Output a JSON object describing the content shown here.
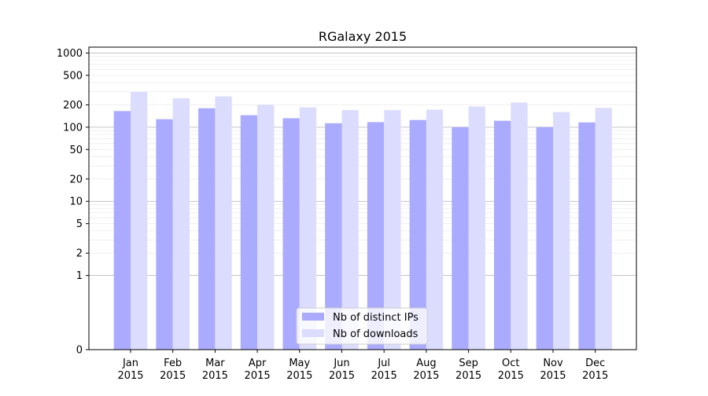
{
  "chart_data": {
    "type": "bar",
    "title": "RGalaxy 2015",
    "xlabel": "",
    "ylabel": "",
    "yscale": "symlog",
    "ylim": [
      0,
      1200
    ],
    "yticks": [
      0,
      1,
      2,
      5,
      10,
      20,
      50,
      100,
      200,
      500,
      1000
    ],
    "categories": [
      [
        "Jan",
        "2015"
      ],
      [
        "Feb",
        "2015"
      ],
      [
        "Mar",
        "2015"
      ],
      [
        "Apr",
        "2015"
      ],
      [
        "May",
        "2015"
      ],
      [
        "Jun",
        "2015"
      ],
      [
        "Jul",
        "2015"
      ],
      [
        "Aug",
        "2015"
      ],
      [
        "Sep",
        "2015"
      ],
      [
        "Oct",
        "2015"
      ],
      [
        "Nov",
        "2015"
      ],
      [
        "Dec",
        "2015"
      ]
    ],
    "series": [
      {
        "name": "Nb of distinct IPs",
        "color": "#aaaaff",
        "values": [
          165,
          128,
          180,
          145,
          132,
          113,
          117,
          125,
          100,
          122,
          100,
          116
        ]
      },
      {
        "name": "Nb of downloads",
        "color": "#dcdcff",
        "values": [
          300,
          245,
          260,
          200,
          185,
          170,
          170,
          172,
          190,
          215,
          160,
          182
        ]
      }
    ],
    "grid": true,
    "legend_position": "lower-center"
  }
}
